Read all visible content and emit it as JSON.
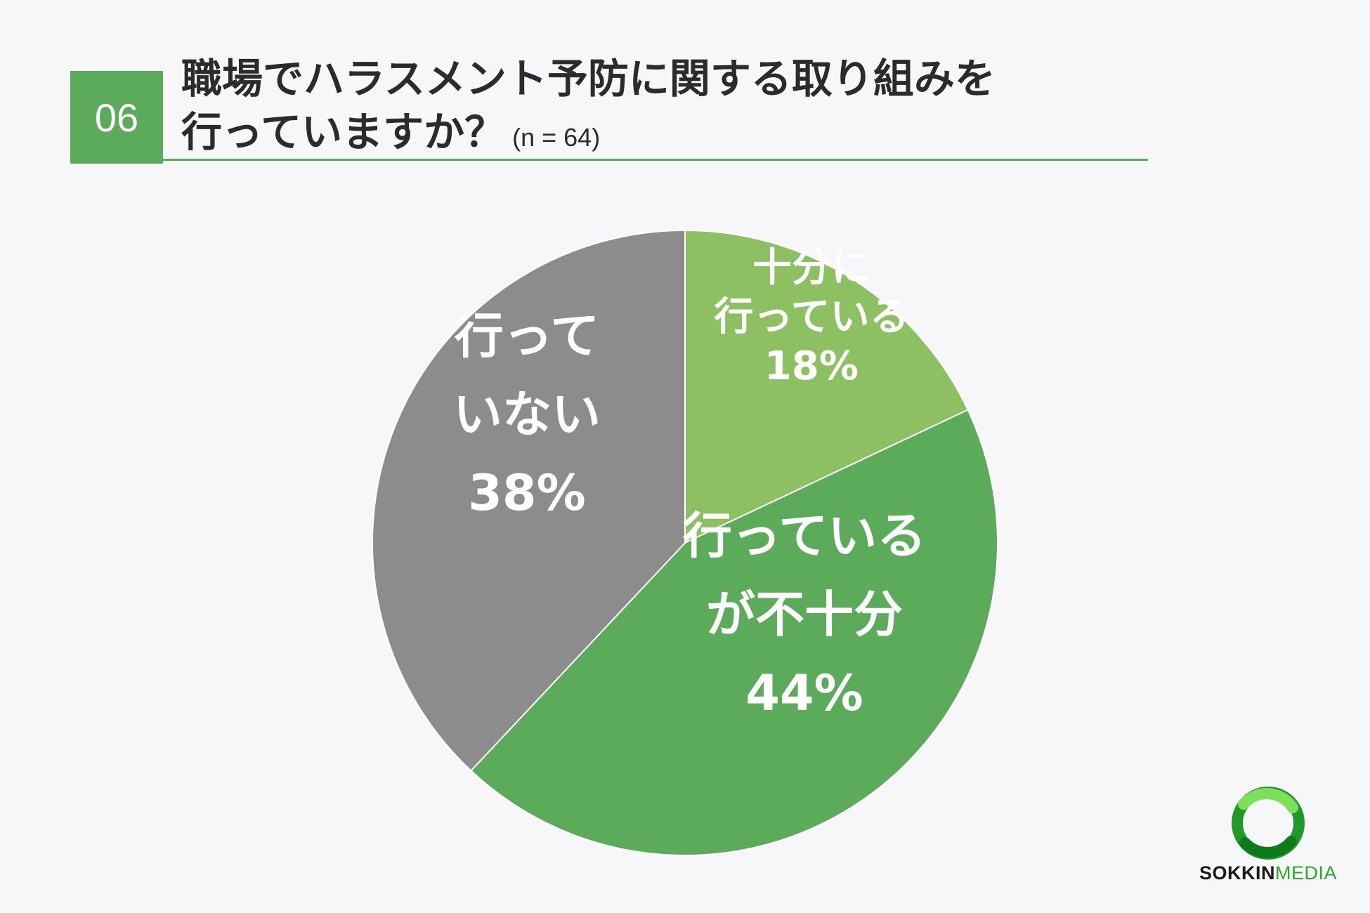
{
  "header": {
    "question_number": "06",
    "title_line1": "職場でハラスメント予防に関する取り組みを",
    "title_line2": "行っていますか？",
    "sample_size": "(n = 64)"
  },
  "chart_data": {
    "type": "pie",
    "title": "職場でハラスメント予防に関する取り組みを行っていますか？",
    "n": 64,
    "slices": [
      {
        "label_lines": [
          "十分に",
          "行っている"
        ],
        "value": 18,
        "value_label": "18%",
        "color": "#8dc063"
      },
      {
        "label_lines": [
          "行っている",
          "が不十分"
        ],
        "value": 44,
        "value_label": "44%",
        "color": "#5bab5b"
      },
      {
        "label_lines": [
          "行って",
          "いない"
        ],
        "value": 38,
        "value_label": "38%",
        "color": "#8c8c8c"
      }
    ]
  },
  "brand": {
    "logo_part1": "SOKKIN",
    "logo_part2": "MEDIA",
    "accent_color": "#5bab5b",
    "logo_icon": "ring-logo-icon"
  }
}
